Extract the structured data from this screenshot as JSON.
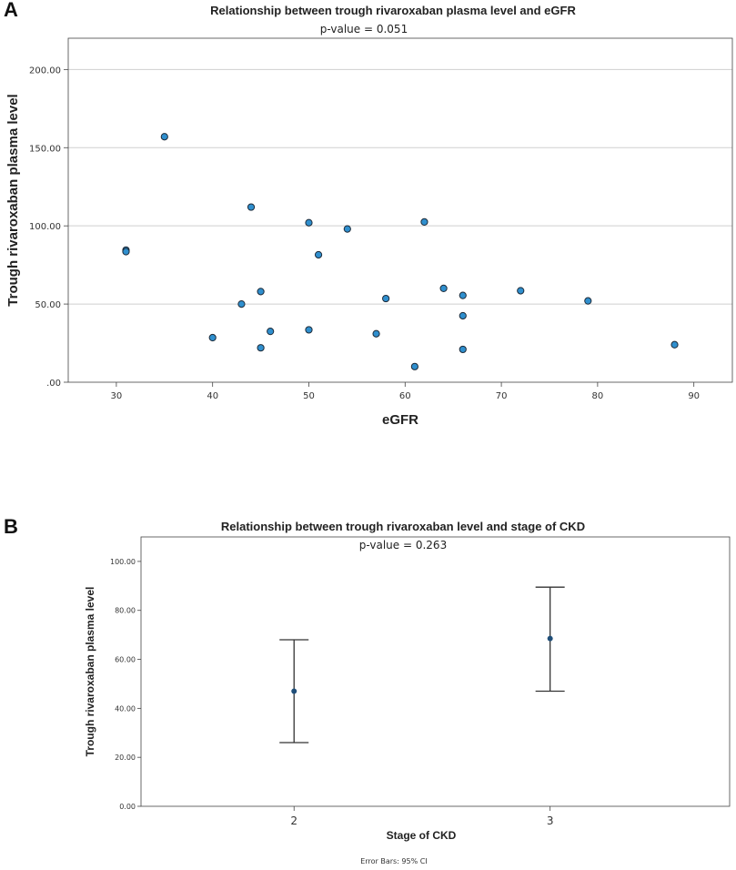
{
  "panel_a": {
    "letter": "A"
  },
  "panel_b": {
    "letter": "B"
  },
  "chart_data": [
    {
      "type": "scatter",
      "title": "Relationship between trough rivaroxaban plasma level and eGFR",
      "subtitle": "p-value = 0.051",
      "xlabel": "eGFR",
      "ylabel": "Trough rivaroxaban plasma level",
      "xlim": [
        25,
        94
      ],
      "ylim": [
        0,
        220
      ],
      "xticks": [
        30,
        40,
        50,
        60,
        70,
        80,
        90
      ],
      "xtick_labels": [
        "30",
        "40",
        "50",
        "60",
        "70",
        "80",
        "90"
      ],
      "yticks": [
        0,
        50,
        100,
        150,
        200
      ],
      "ytick_labels": [
        ".00",
        "50.00",
        "100.00",
        "150.00",
        "200.00"
      ],
      "grid": "horizontal",
      "point_color": "#2f8fce",
      "points": [
        {
          "x": 31,
          "y": 84.5
        },
        {
          "x": 31,
          "y": 83.5
        },
        {
          "x": 35,
          "y": 157
        },
        {
          "x": 40,
          "y": 28.5
        },
        {
          "x": 43,
          "y": 50
        },
        {
          "x": 44,
          "y": 112
        },
        {
          "x": 45,
          "y": 58
        },
        {
          "x": 45,
          "y": 22
        },
        {
          "x": 46,
          "y": 32.5
        },
        {
          "x": 50,
          "y": 102
        },
        {
          "x": 50,
          "y": 33.5
        },
        {
          "x": 51,
          "y": 81.5
        },
        {
          "x": 54,
          "y": 98
        },
        {
          "x": 57,
          "y": 31
        },
        {
          "x": 58,
          "y": 53.5
        },
        {
          "x": 61,
          "y": 10
        },
        {
          "x": 62,
          "y": 102.5
        },
        {
          "x": 64,
          "y": 60
        },
        {
          "x": 66,
          "y": 55.5
        },
        {
          "x": 66,
          "y": 42.5
        },
        {
          "x": 66,
          "y": 21
        },
        {
          "x": 72,
          "y": 58.5
        },
        {
          "x": 79,
          "y": 52
        },
        {
          "x": 88,
          "y": 24
        }
      ]
    },
    {
      "type": "errorbar",
      "title": "Relationship between trough rivaroxaban level and stage of CKD",
      "subtitle": "p-value = 0.263",
      "xlabel": "Stage of CKD",
      "ylabel": "Trough rivaroxaban plasma level",
      "categories": [
        "2",
        "3"
      ],
      "means": [
        47,
        68.5
      ],
      "ci_lower": [
        26,
        47
      ],
      "ci_upper": [
        68,
        89.5
      ],
      "ylim": [
        0,
        110
      ],
      "yticks": [
        0,
        20,
        40,
        60,
        80,
        100
      ],
      "ytick_labels": [
        "0.00",
        "20.00",
        "40.00",
        "60.00",
        "80.00",
        "100.00"
      ],
      "note": "Error Bars: 95% CI",
      "point_color": "#1f4e79"
    }
  ]
}
